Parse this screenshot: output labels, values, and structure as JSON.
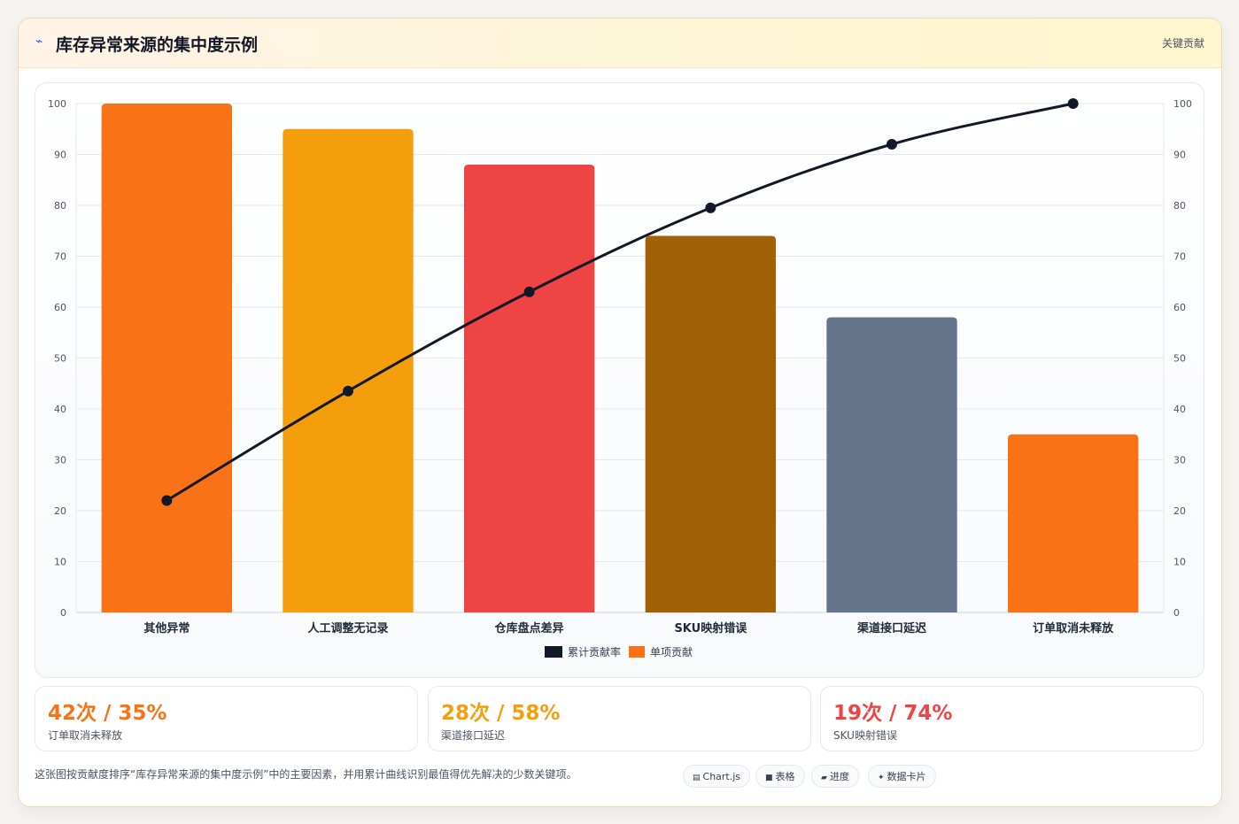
{
  "header": {
    "icon": "lightning-icon",
    "title": "库存异常来源的集中度示例",
    "right_label": "关键贡献"
  },
  "chart_data": {
    "type": "bar",
    "categories": [
      "其他异常",
      "人工调整无记录",
      "仓库盘点差异",
      "SKU映射错误",
      "渠道接口延迟",
      "订单取消未释放"
    ],
    "series": [
      {
        "name": "单项贡献",
        "type": "bar",
        "values": [
          100,
          95,
          88,
          74,
          58,
          35
        ],
        "colors": [
          "#f97316",
          "#f59e0b",
          "#ef4444",
          "#a16207",
          "#64748b",
          "#f97316"
        ]
      },
      {
        "name": "累计贡献率",
        "type": "line",
        "values": [
          22,
          43.5,
          63,
          79.5,
          92,
          100
        ],
        "color": "#111827"
      }
    ],
    "ylim_left": [
      0,
      100
    ],
    "ylim_right": [
      0,
      100
    ],
    "yticks": [
      0,
      10,
      20,
      30,
      40,
      50,
      60,
      70,
      80,
      90,
      100
    ],
    "legend": [
      "累计贡献率",
      "单项贡献"
    ],
    "legend_position": "bottom",
    "grid": true
  },
  "stats": [
    {
      "value": "42次 / 35%",
      "label": "订单取消未释放",
      "color": "#f97316"
    },
    {
      "value": "28次 / 58%",
      "label": "渠道接口延迟",
      "color": "#f59e0b"
    },
    {
      "value": "19次 / 74%",
      "label": "SKU映射错误",
      "color": "#ef4444"
    }
  ],
  "footnote": "这张图按贡献度排序“库存异常来源的集中度示例”中的主要因素，并用累计曲线识别最值得优先解决的少数关键项。",
  "pills": [
    {
      "icon": "chart-icon",
      "glyph": "▤",
      "label": "Chart.js"
    },
    {
      "icon": "table-icon",
      "glyph": "■",
      "label": "表格"
    },
    {
      "icon": "progress-icon",
      "glyph": "▰",
      "label": "进度"
    },
    {
      "icon": "data-card-icon",
      "glyph": "✦",
      "label": "数据卡片"
    }
  ]
}
